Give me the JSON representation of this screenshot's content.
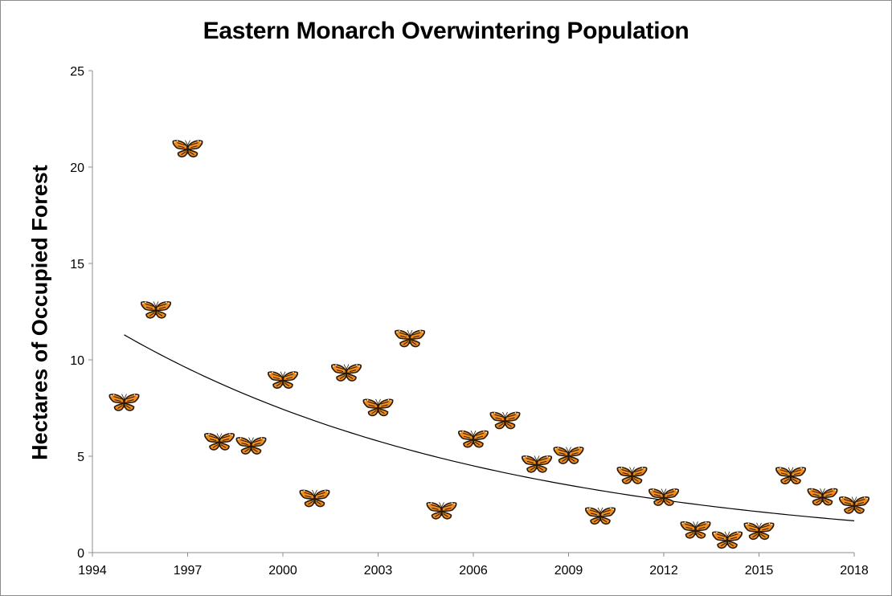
{
  "chart_data": {
    "type": "scatter",
    "title": "Eastern Monarch Overwintering Population",
    "xlabel": "",
    "ylabel": "Hectares of Occupied Forest",
    "xlim": [
      1994,
      2018
    ],
    "ylim": [
      0,
      25
    ],
    "x_ticks": [
      "1994",
      "1997",
      "2000",
      "2003",
      "2006",
      "2009",
      "2012",
      "2015",
      "2018"
    ],
    "y_ticks": [
      "0",
      "5",
      "10",
      "15",
      "20",
      "25"
    ],
    "marker": "monarch-butterfly",
    "colors": {
      "wing": "#f28c1a",
      "vein": "#2a1a0a",
      "spot": "#ffffff",
      "axis": "#8c8c8c",
      "trend": "#000000"
    },
    "grid": false,
    "legend": "none",
    "points": [
      {
        "x": 1995,
        "y": 7.81
      },
      {
        "x": 1996,
        "y": 12.61
      },
      {
        "x": 1997,
        "y": 20.97
      },
      {
        "x": 1998,
        "y": 5.77
      },
      {
        "x": 1999,
        "y": 5.56
      },
      {
        "x": 2000,
        "y": 8.97
      },
      {
        "x": 2001,
        "y": 2.83
      },
      {
        "x": 2002,
        "y": 9.35
      },
      {
        "x": 2003,
        "y": 7.54
      },
      {
        "x": 2004,
        "y": 11.12
      },
      {
        "x": 2005,
        "y": 2.19
      },
      {
        "x": 2006,
        "y": 5.91
      },
      {
        "x": 2007,
        "y": 6.87
      },
      {
        "x": 2008,
        "y": 4.61
      },
      {
        "x": 2009,
        "y": 5.06
      },
      {
        "x": 2010,
        "y": 1.92
      },
      {
        "x": 2011,
        "y": 4.02
      },
      {
        "x": 2012,
        "y": 2.89
      },
      {
        "x": 2013,
        "y": 1.19
      },
      {
        "x": 2014,
        "y": 0.67
      },
      {
        "x": 2015,
        "y": 1.13
      },
      {
        "x": 2016,
        "y": 4.01
      },
      {
        "x": 2017,
        "y": 2.91
      },
      {
        "x": 2018,
        "y": 2.48
      }
    ],
    "trendline": {
      "type": "exponential",
      "x_start": 1995,
      "x_end": 2018,
      "y_start": 11.3,
      "y_end": 1.65
    }
  }
}
